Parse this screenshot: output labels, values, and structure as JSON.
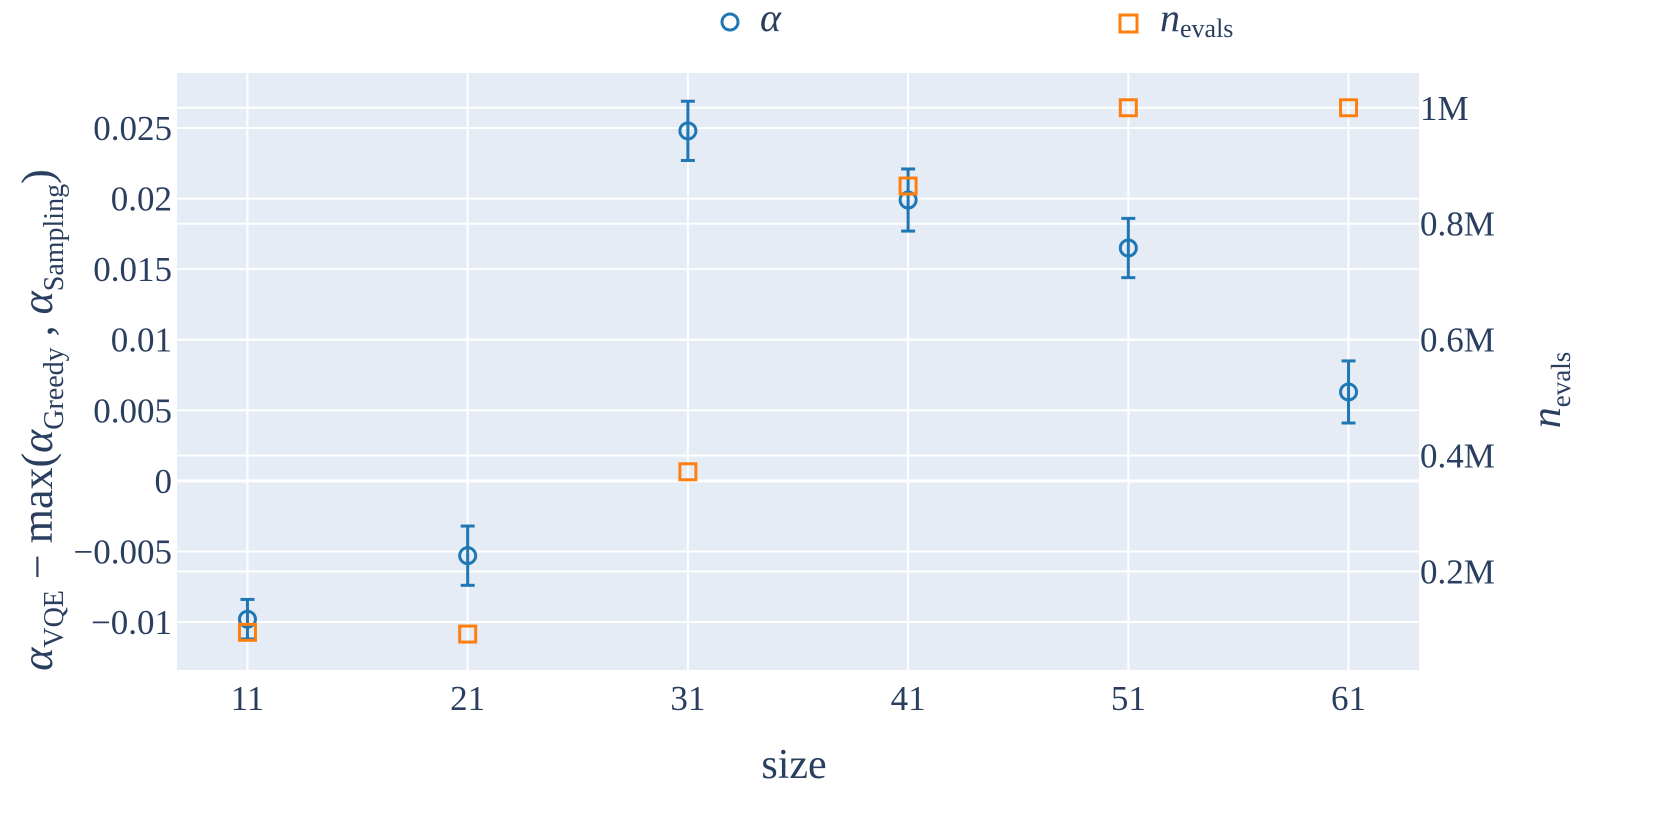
{
  "chart_data": {
    "type": "scatter",
    "xlabel": "size",
    "ylabel_left": {
      "main": "α",
      "main_sub": "VQE",
      "minus": " − max(",
      "a1": "α",
      "a1_sub": "Greedy",
      "comma": " , ",
      "a2": "α",
      "a2_sub": "Sampling",
      "close": ")"
    },
    "ylabel_right": {
      "main": "n",
      "sub": "evals"
    },
    "x": [
      11,
      21,
      31,
      41,
      51,
      61
    ],
    "x_tick_labels": [
      "11",
      "21",
      "31",
      "41",
      "51",
      "61"
    ],
    "xlim": [
      7.8,
      64.2
    ],
    "ylim_left": [
      -0.0134,
      0.0289
    ],
    "ylim_right": [
      30000,
      1060000
    ],
    "y_left_ticks": [
      -0.01,
      -0.005,
      0,
      0.005,
      0.01,
      0.015,
      0.02,
      0.025
    ],
    "y_left_tick_labels": [
      "−0.01",
      "−0.005",
      "0",
      "0.005",
      "0.01",
      "0.015",
      "0.02",
      "0.025"
    ],
    "y_right_ticks": [
      200000,
      400000,
      600000,
      800000,
      1000000
    ],
    "y_right_tick_labels": [
      "0.2M",
      "0.4M",
      "0.6M",
      "0.8M",
      "1M"
    ],
    "grid": true,
    "legend_position": "top",
    "series": [
      {
        "name": "α",
        "axis": "left",
        "marker": "circle-open",
        "color": "#1f77b4",
        "values": [
          -0.0098,
          -0.0053,
          0.0248,
          0.0199,
          0.0165,
          0.0063
        ],
        "error": [
          0.0014,
          0.0021,
          0.0021,
          0.0022,
          0.0021,
          0.0022
        ]
      },
      {
        "name": "n",
        "name_sub": "evals",
        "axis": "right",
        "marker": "square-open",
        "color": "#ff7f0e",
        "values": [
          95000,
          92000,
          372000,
          865000,
          1000000,
          1000000
        ]
      }
    ]
  }
}
